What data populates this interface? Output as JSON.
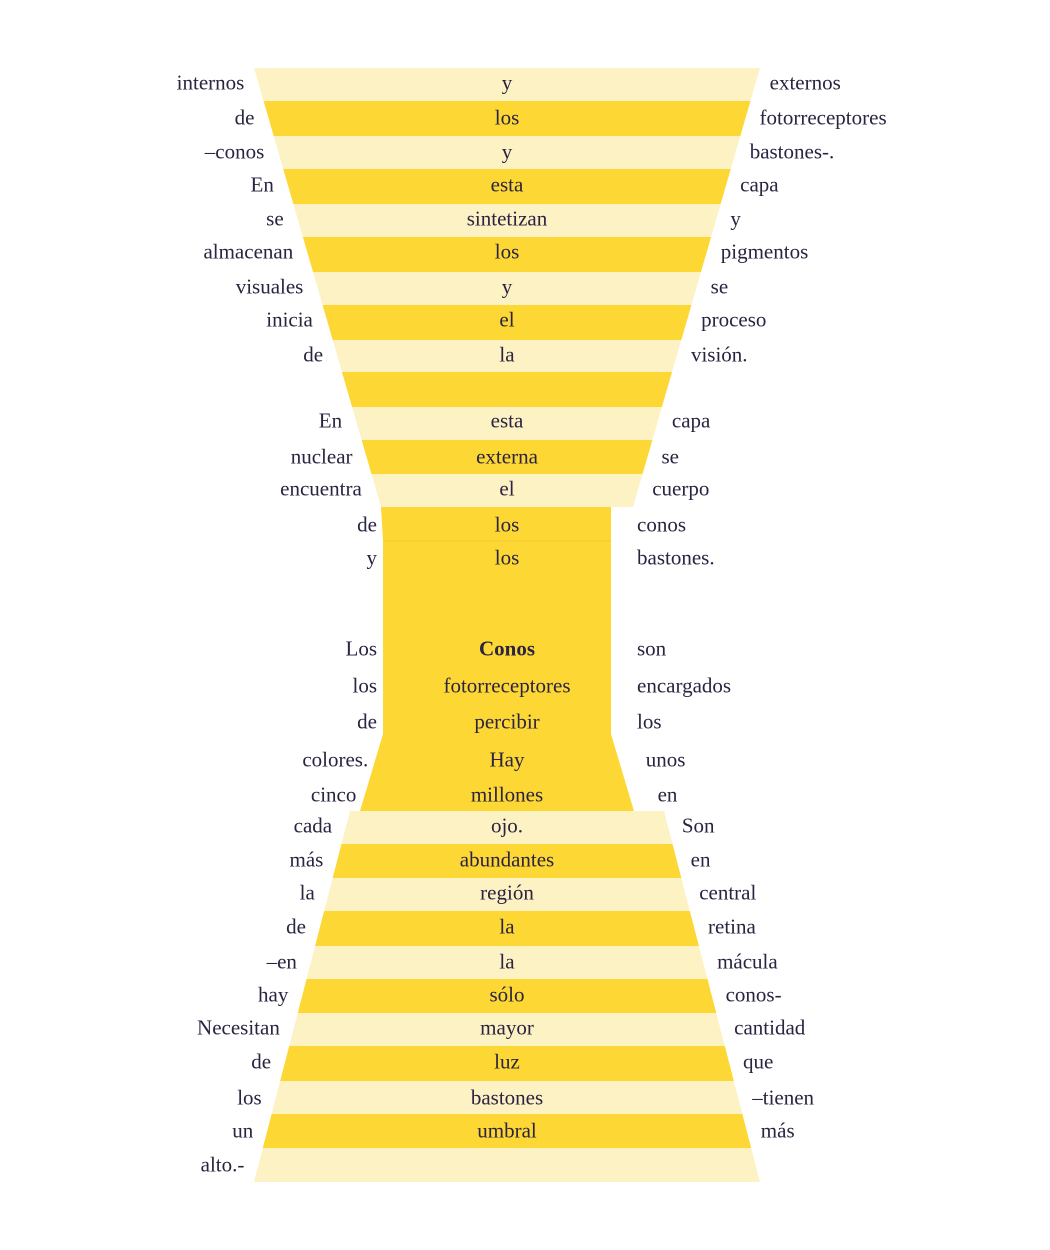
{
  "colors": {
    "band_light": "#fdf2c4",
    "band_dark": "#fdd835",
    "column": "#fdd835",
    "text": "#2b2340"
  },
  "rows": [
    {
      "left": "internos",
      "center": "y",
      "right": "externos"
    },
    {
      "left": "de",
      "center": "los",
      "right": "fotorreceptores"
    },
    {
      "left": "–conos",
      "center": "y",
      "right": "bastones-."
    },
    {
      "left": "En",
      "center": "esta",
      "right": "capa"
    },
    {
      "left": "se",
      "center": "sintetizan",
      "right": "y"
    },
    {
      "left": "almacenan",
      "center": "los",
      "right": "pigmentos"
    },
    {
      "left": "visuales",
      "center": "y",
      "right": "se"
    },
    {
      "left": "inicia",
      "center": "el",
      "right": "proceso"
    },
    {
      "left": "de",
      "center": "la",
      "right": "visión."
    },
    {
      "left": "",
      "center": "",
      "right": ""
    },
    {
      "left": "En",
      "center": "esta",
      "right": "capa"
    },
    {
      "left": "nuclear",
      "center": "externa",
      "right": "se"
    },
    {
      "left": "encuentra",
      "center": "el",
      "right": "cuerpo"
    },
    {
      "left": "de",
      "center": "los",
      "right": "conos"
    },
    {
      "left": "y",
      "center": "los",
      "right": "bastones."
    },
    {
      "left": "Los",
      "center": "Conos",
      "right": "son",
      "bold": true
    },
    {
      "left": "los",
      "center": "fotorreceptores",
      "right": "encargados"
    },
    {
      "left": "de",
      "center": "percibir",
      "right": "los"
    },
    {
      "left": "colores.",
      "center": "Hay",
      "right": "unos"
    },
    {
      "left": "cinco",
      "center": "millones",
      "right": "en"
    },
    {
      "left": "cada",
      "center": "ojo.",
      "right": "Son"
    },
    {
      "left": "más",
      "center": "abundantes",
      "right": "en"
    },
    {
      "left": "la",
      "center": "región",
      "right": "central"
    },
    {
      "left": "de",
      "center": "la",
      "right": "retina"
    },
    {
      "left": "–en",
      "center": "la",
      "right": "mácula"
    },
    {
      "left": "hay",
      "center": "sólo",
      "right": "conos-"
    },
    {
      "left": "Necesitan",
      "center": "mayor",
      "right": "cantidad"
    },
    {
      "left": "de",
      "center": "luz",
      "right": "que"
    },
    {
      "left": "los",
      "center": "bastones",
      "right": "–tienen"
    },
    {
      "left": "un",
      "center": "umbral",
      "right": "más"
    },
    {
      "left": "alto.-",
      "center": "",
      "right": ""
    }
  ]
}
